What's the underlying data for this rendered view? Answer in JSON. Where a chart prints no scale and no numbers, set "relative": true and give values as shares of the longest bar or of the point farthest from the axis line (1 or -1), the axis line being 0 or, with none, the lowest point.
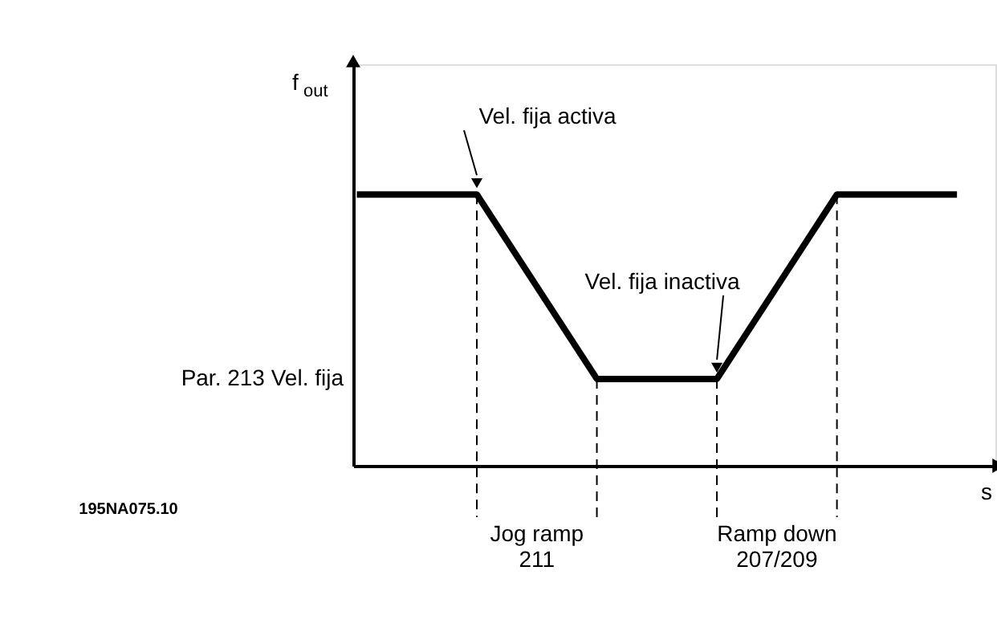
{
  "chart_data": {
    "type": "line",
    "relative": true,
    "xlabel": "s",
    "ylabel": "f$_{out}$",
    "grid": false,
    "line_style": "solid",
    "color": "#000000",
    "categories": [
      null,
      null,
      null,
      null,
      null,
      null
    ],
    "values": [
      1,
      1,
      0.32,
      0.32,
      1,
      1
    ],
    "annotations": [
      "Vel. fija activa",
      "Vel. fija inactiva",
      "Par. 213 Vel. fija",
      "Jog ramp\n211",
      "Ramp down\n207/209",
      "195NA075.10"
    ]
  }
}
